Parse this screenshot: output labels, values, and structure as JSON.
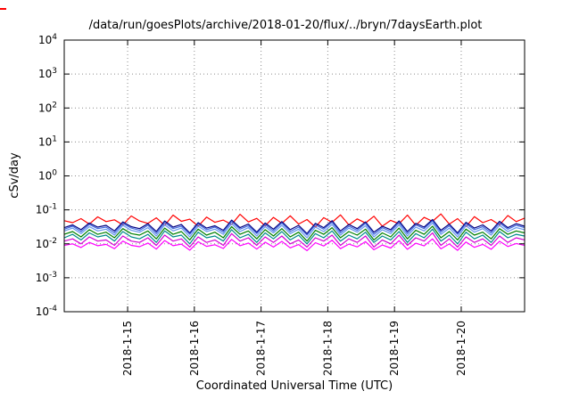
{
  "title": "/data/run/goesPlots/archive/2018-01-20/flux/../bryn/7daysEarth.plot",
  "chart_data": {
    "type": "line",
    "title": "/data/run/goesPlots/archive/2018-01-20/flux/../bryn/7daysEarth.plot",
    "xlabel": "Coordinated Universal Time (UTC)",
    "ylabel": "cSv/day",
    "y_scale": "log",
    "ylim": [
      0.0001,
      10000
    ],
    "y_tick_exponents": [
      -4,
      -3,
      -2,
      -1,
      0,
      1,
      2,
      3,
      4
    ],
    "x_range_days": [
      14.05,
      20.95
    ],
    "x_ticks": [
      {
        "day": 15,
        "label": "2018-1-15"
      },
      {
        "day": 16,
        "label": "2018-1-16"
      },
      {
        "day": 17,
        "label": "2018-1-17"
      },
      {
        "day": 18,
        "label": "2018-1-18"
      },
      {
        "day": 19,
        "label": "2018-1-19"
      },
      {
        "day": 20,
        "label": "2018-1-20"
      }
    ],
    "grid": "on",
    "legend": "none",
    "series": [
      {
        "name": "red",
        "color": "#ff0000",
        "values": [
          0.048,
          0.042,
          0.055,
          0.038,
          0.062,
          0.045,
          0.051,
          0.036,
          0.066,
          0.047,
          0.04,
          0.058,
          0.035,
          0.07,
          0.046,
          0.053,
          0.033,
          0.061,
          0.043,
          0.05,
          0.037,
          0.074,
          0.044,
          0.056,
          0.034,
          0.06,
          0.04,
          0.067,
          0.038,
          0.052,
          0.031,
          0.059,
          0.043,
          0.071,
          0.036,
          0.054,
          0.041,
          0.065,
          0.033,
          0.049,
          0.039,
          0.07,
          0.035,
          0.06,
          0.046,
          0.076,
          0.038,
          0.055,
          0.032,
          0.063,
          0.042,
          0.052,
          0.036,
          0.068,
          0.045,
          0.057
        ]
      },
      {
        "name": "navy",
        "color": "#000080",
        "values": [
          0.03,
          0.036,
          0.026,
          0.041,
          0.031,
          0.035,
          0.024,
          0.044,
          0.032,
          0.028,
          0.039,
          0.023,
          0.047,
          0.031,
          0.037,
          0.021,
          0.042,
          0.029,
          0.034,
          0.025,
          0.05,
          0.03,
          0.038,
          0.022,
          0.041,
          0.027,
          0.045,
          0.026,
          0.035,
          0.02,
          0.04,
          0.03,
          0.048,
          0.024,
          0.037,
          0.028,
          0.044,
          0.022,
          0.033,
          0.026,
          0.047,
          0.023,
          0.04,
          0.031,
          0.052,
          0.025,
          0.038,
          0.021,
          0.043,
          0.029,
          0.036,
          0.024,
          0.046,
          0.03,
          0.039,
          0.033
        ]
      },
      {
        "name": "royalblue",
        "color": "#4169e1",
        "values": [
          0.027,
          0.033,
          0.023,
          0.037,
          0.028,
          0.031,
          0.021,
          0.04,
          0.029,
          0.025,
          0.035,
          0.02,
          0.042,
          0.028,
          0.033,
          0.019,
          0.038,
          0.026,
          0.031,
          0.022,
          0.045,
          0.027,
          0.034,
          0.02,
          0.037,
          0.024,
          0.041,
          0.023,
          0.031,
          0.018,
          0.036,
          0.027,
          0.043,
          0.021,
          0.033,
          0.025,
          0.04,
          0.019,
          0.03,
          0.023,
          0.042,
          0.02,
          0.036,
          0.028,
          0.047,
          0.022,
          0.034,
          0.019,
          0.039,
          0.026,
          0.032,
          0.021,
          0.041,
          0.027,
          0.035,
          0.03
        ]
      },
      {
        "name": "lightblue",
        "color": "#6495ed",
        "values": [
          0.024,
          0.029,
          0.02,
          0.032,
          0.024,
          0.027,
          0.018,
          0.035,
          0.025,
          0.022,
          0.03,
          0.017,
          0.036,
          0.024,
          0.029,
          0.016,
          0.033,
          0.023,
          0.027,
          0.019,
          0.039,
          0.023,
          0.03,
          0.017,
          0.032,
          0.021,
          0.035,
          0.02,
          0.027,
          0.015,
          0.031,
          0.023,
          0.037,
          0.018,
          0.029,
          0.022,
          0.034,
          0.016,
          0.026,
          0.02,
          0.036,
          0.017,
          0.031,
          0.024,
          0.041,
          0.019,
          0.029,
          0.016,
          0.034,
          0.022,
          0.028,
          0.018,
          0.035,
          0.023,
          0.03,
          0.026
        ]
      },
      {
        "name": "green",
        "color": "#008000",
        "values": [
          0.019,
          0.023,
          0.016,
          0.026,
          0.019,
          0.022,
          0.015,
          0.028,
          0.02,
          0.018,
          0.024,
          0.014,
          0.029,
          0.019,
          0.023,
          0.013,
          0.027,
          0.018,
          0.022,
          0.015,
          0.032,
          0.019,
          0.024,
          0.014,
          0.026,
          0.017,
          0.028,
          0.016,
          0.022,
          0.012,
          0.025,
          0.019,
          0.03,
          0.015,
          0.023,
          0.018,
          0.027,
          0.013,
          0.021,
          0.016,
          0.029,
          0.014,
          0.025,
          0.019,
          0.033,
          0.015,
          0.023,
          0.013,
          0.027,
          0.018,
          0.022,
          0.014,
          0.028,
          0.019,
          0.024,
          0.021
        ]
      },
      {
        "name": "teal",
        "color": "#008b8b",
        "values": [
          0.015,
          0.019,
          0.013,
          0.021,
          0.016,
          0.018,
          0.012,
          0.023,
          0.016,
          0.014,
          0.019,
          0.011,
          0.024,
          0.016,
          0.018,
          0.01,
          0.022,
          0.015,
          0.017,
          0.012,
          0.026,
          0.015,
          0.019,
          0.011,
          0.021,
          0.014,
          0.023,
          0.013,
          0.018,
          0.01,
          0.02,
          0.015,
          0.024,
          0.012,
          0.018,
          0.014,
          0.022,
          0.011,
          0.017,
          0.013,
          0.023,
          0.011,
          0.02,
          0.015,
          0.027,
          0.012,
          0.018,
          0.01,
          0.022,
          0.014,
          0.018,
          0.011,
          0.023,
          0.015,
          0.019,
          0.017
        ]
      },
      {
        "name": "magenta",
        "color": "#d400d4",
        "values": [
          0.012,
          0.014,
          0.01,
          0.016,
          0.012,
          0.013,
          0.009,
          0.017,
          0.012,
          0.011,
          0.015,
          0.009,
          0.018,
          0.012,
          0.014,
          0.008,
          0.016,
          0.011,
          0.013,
          0.009,
          0.02,
          0.012,
          0.015,
          0.009,
          0.016,
          0.011,
          0.017,
          0.01,
          0.013,
          0.008,
          0.015,
          0.012,
          0.018,
          0.009,
          0.014,
          0.011,
          0.017,
          0.008,
          0.013,
          0.01,
          0.018,
          0.009,
          0.015,
          0.012,
          0.021,
          0.009,
          0.014,
          0.008,
          0.016,
          0.011,
          0.014,
          0.009,
          0.017,
          0.011,
          0.015,
          0.013
        ]
      },
      {
        "name": "pink",
        "color": "#ff00ff",
        "values": [
          0.009,
          0.01,
          0.0078,
          0.011,
          0.0088,
          0.0096,
          0.0072,
          0.012,
          0.009,
          0.0082,
          0.0105,
          0.007,
          0.0125,
          0.0088,
          0.0098,
          0.0065,
          0.0115,
          0.0084,
          0.0094,
          0.0073,
          0.0135,
          0.0088,
          0.0105,
          0.007,
          0.0112,
          0.008,
          0.0118,
          0.0076,
          0.0095,
          0.0063,
          0.0108,
          0.0086,
          0.0128,
          0.0072,
          0.0098,
          0.0081,
          0.0116,
          0.0067,
          0.0092,
          0.0075,
          0.0124,
          0.0069,
          0.0104,
          0.0087,
          0.014,
          0.0071,
          0.0099,
          0.0064,
          0.0113,
          0.0079,
          0.0096,
          0.0069,
          0.0119,
          0.0083,
          0.0102,
          0.009
        ]
      }
    ]
  }
}
